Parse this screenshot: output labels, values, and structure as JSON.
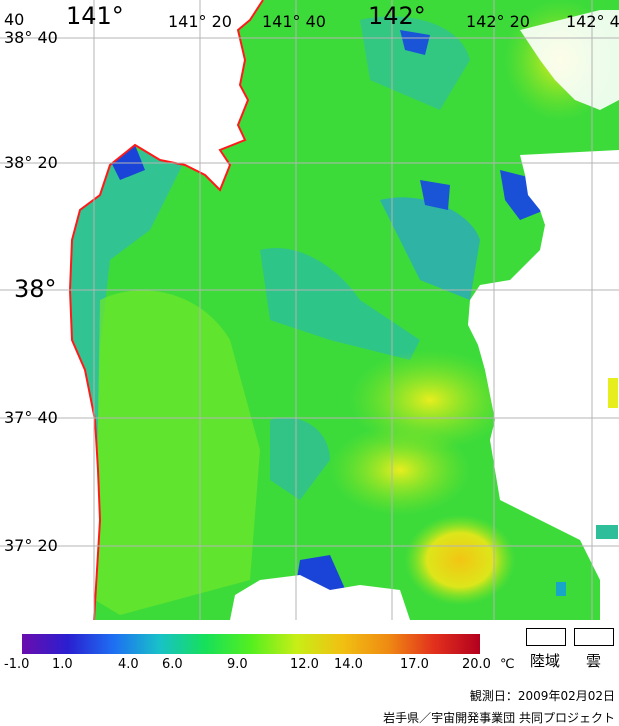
{
  "map": {
    "lon_labels_top": [
      {
        "text": "40",
        "size": "sm"
      },
      {
        "text": "141°",
        "size": "big"
      },
      {
        "text": "141° 20",
        "size": "sm"
      },
      {
        "text": "141° 40",
        "size": "sm"
      },
      {
        "text": "142°",
        "size": "big"
      },
      {
        "text": "142° 20",
        "size": "sm"
      },
      {
        "text": "142° 4",
        "size": "sm"
      }
    ],
    "lat_labels_left": [
      {
        "text": "38° 40",
        "size": "sm"
      },
      {
        "text": "38° 20",
        "size": "sm"
      },
      {
        "text": "38°",
        "size": "big"
      },
      {
        "text": "37° 40",
        "size": "sm"
      },
      {
        "text": "37° 20",
        "size": "sm"
      }
    ],
    "colors": {
      "coastline": "#ff1a1a",
      "grid": "#b4b4b4",
      "land": "#ffffff",
      "cloud": "#ffffff"
    }
  },
  "colorbar": {
    "unit": "℃",
    "stops": [
      "#6a0dad",
      "#2a1fd0",
      "#1e6ff2",
      "#18c1c8",
      "#16e05a",
      "#54ef1f",
      "#c8ee16",
      "#f1c012",
      "#ef8a12",
      "#e2301d",
      "#b3001e"
    ],
    "ticks": [
      "-1.0",
      "1.0",
      "4.0",
      "6.0",
      "9.0",
      "12.0",
      "14.0",
      "17.0",
      "20.0"
    ]
  },
  "legend": {
    "land_label": "陸域",
    "cloud_label": "雲"
  },
  "footer": {
    "observation_date": "観測日：2009年02月02日",
    "credit": "岩手県／宇宙開発事業団 共同プロジェクト"
  }
}
